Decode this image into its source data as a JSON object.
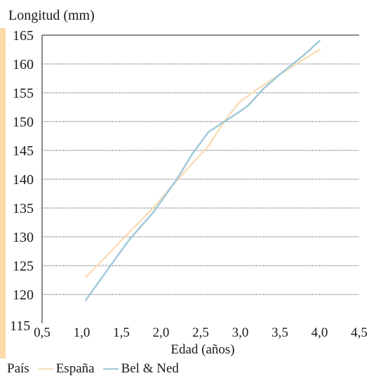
{
  "colors": {
    "espana": "#f9dfb8",
    "belned": "#9fc9d9",
    "grid": "#2a2a2a",
    "accent_bar": "#fcd9a6"
  },
  "legend": {
    "title": "País"
  },
  "chart_data": {
    "type": "line",
    "title": "",
    "xlabel": "Edad (años)",
    "ylabel": "Longitud (mm)",
    "xlim": [
      0.5,
      4.5
    ],
    "ylim": [
      115,
      165
    ],
    "x_ticks": [
      "0,5",
      "1,0",
      "1,5",
      "2,0",
      "2,5",
      "3,0",
      "3,5",
      "4,0",
      "4,5"
    ],
    "y_ticks": [
      "115",
      "120",
      "125",
      "130",
      "135",
      "140",
      "145",
      "150",
      "155",
      "160",
      "165"
    ],
    "grid": "horizontal-dotted",
    "legend_position": "bottom-left",
    "series": [
      {
        "name": "España",
        "color": "#f9dfb8",
        "points": [
          [
            1.05,
            123.0
          ],
          [
            1.3,
            126.5
          ],
          [
            1.6,
            130.8
          ],
          [
            1.9,
            135.0
          ],
          [
            2.2,
            139.8
          ],
          [
            2.4,
            142.8
          ],
          [
            2.6,
            145.8
          ],
          [
            2.75,
            149.0
          ],
          [
            2.85,
            151.0
          ],
          [
            3.0,
            153.5
          ],
          [
            3.2,
            155.5
          ],
          [
            3.5,
            158.2
          ],
          [
            3.8,
            160.8
          ],
          [
            4.0,
            162.5
          ]
        ]
      },
      {
        "name": "Bel & Ned",
        "color": "#9fc9d9",
        "points": [
          [
            1.05,
            119.0
          ],
          [
            1.3,
            123.8
          ],
          [
            1.6,
            129.5
          ],
          [
            1.9,
            134.2
          ],
          [
            2.2,
            140.0
          ],
          [
            2.4,
            144.5
          ],
          [
            2.6,
            148.2
          ],
          [
            2.8,
            150.0
          ],
          [
            3.0,
            151.8
          ],
          [
            3.1,
            152.8
          ],
          [
            3.3,
            155.8
          ],
          [
            3.5,
            158.2
          ],
          [
            3.8,
            161.5
          ],
          [
            4.0,
            164.0
          ]
        ]
      }
    ]
  }
}
